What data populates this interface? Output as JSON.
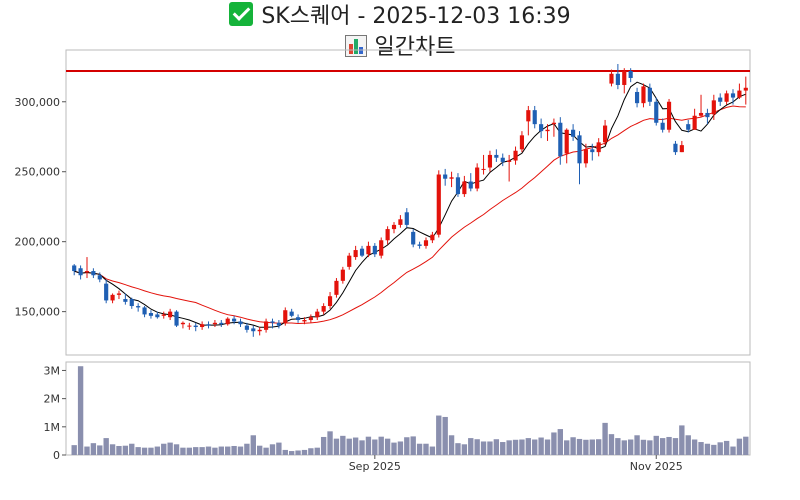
{
  "title": {
    "text": "SK스퀘어 - 2025-12-03 16:39",
    "icon": "check-icon"
  },
  "subtitle": {
    "text": "일간차트",
    "icon": "bar-chart-icon"
  },
  "colors": {
    "up": "#e3120b",
    "down": "#1f5fb3",
    "ma5": "#000000",
    "ma20": "#e3120b",
    "resistance": "#d40000",
    "volume": "#8a8fae"
  },
  "chart_data": [
    {
      "type": "candlestick",
      "title": "",
      "x_ticks": [
        {
          "index": 47,
          "label": "Sep 2025"
        },
        {
          "index": 91,
          "label": "Nov 2025"
        }
      ],
      "y_ticks": [
        150000,
        200000,
        250000,
        300000
      ],
      "y_tick_labels": [
        "150,000",
        "200,000",
        "250,000",
        "300,000"
      ],
      "ylim": [
        119000,
        337000
      ],
      "resistance_line": 322000,
      "closes": [
        179000,
        176000,
        179000,
        176000,
        173000,
        158000,
        162000,
        163000,
        157000,
        154000,
        153000,
        148000,
        147000,
        146000,
        148000,
        150000,
        140000,
        142000,
        140000,
        139000,
        141000,
        140000,
        142000,
        141000,
        145000,
        143000,
        141000,
        137000,
        136000,
        137000,
        143000,
        142000,
        140000,
        151000,
        147000,
        144000,
        144000,
        146000,
        150000,
        154000,
        161000,
        172000,
        180000,
        190000,
        194000,
        190000,
        197000,
        191000,
        201000,
        209000,
        212000,
        216000,
        212000,
        198000,
        197000,
        201000,
        205000,
        248000,
        245000,
        246000,
        234000,
        243000,
        238000,
        253000,
        252000,
        262000,
        260000,
        257000,
        258000,
        265000,
        276000,
        294000,
        284000,
        279000,
        280000,
        285000,
        261000,
        280000,
        275000,
        256000,
        266000,
        264000,
        271000,
        283000,
        320000,
        312000,
        322000,
        317000,
        299000,
        311000,
        300000,
        285000,
        280000,
        300000,
        264000,
        269000,
        280000,
        290000,
        292000,
        289000,
        301000,
        300000,
        306000,
        303000,
        308000,
        310000
      ],
      "opens": [
        183000,
        181000,
        178000,
        179000,
        176000,
        170000,
        158000,
        162000,
        159000,
        159000,
        154000,
        153000,
        149000,
        148000,
        147000,
        146000,
        150000,
        141000,
        140000,
        140000,
        139000,
        141000,
        141000,
        142000,
        141000,
        145000,
        143000,
        140000,
        138000,
        136000,
        137000,
        143000,
        142000,
        142000,
        150000,
        146000,
        143000,
        144000,
        146000,
        150000,
        154000,
        162000,
        172000,
        182000,
        189000,
        195000,
        191000,
        197000,
        190000,
        201000,
        209000,
        212000,
        221000,
        207000,
        198000,
        197000,
        201000,
        205000,
        248000,
        245000,
        246000,
        234000,
        243000,
        238000,
        252000,
        253000,
        262000,
        260000,
        257000,
        258000,
        266000,
        286000,
        294000,
        284000,
        279000,
        284000,
        285000,
        263000,
        280000,
        276000,
        256000,
        266000,
        264000,
        271000,
        313000,
        320000,
        312000,
        322000,
        307000,
        299000,
        310000,
        300000,
        285000,
        280000,
        270000,
        264000,
        284000,
        280000,
        290000,
        292000,
        291000,
        303000,
        300000,
        306000,
        303000,
        308000
      ],
      "highs": [
        184000,
        183000,
        189000,
        181000,
        178000,
        173000,
        163000,
        165000,
        163000,
        160000,
        156000,
        154000,
        151000,
        150000,
        150000,
        152000,
        151000,
        143000,
        142000,
        142000,
        143000,
        143000,
        144000,
        144000,
        146000,
        147000,
        145000,
        142000,
        140000,
        139000,
        145000,
        145000,
        144000,
        153000,
        152000,
        148000,
        146000,
        148000,
        152000,
        156000,
        164000,
        174000,
        182000,
        192000,
        197000,
        197000,
        200000,
        199000,
        203000,
        211000,
        214000,
        219000,
        224000,
        209000,
        200000,
        203000,
        207000,
        251000,
        252000,
        250000,
        249000,
        247000,
        249000,
        256000,
        262000,
        265000,
        266000,
        263000,
        262000,
        268000,
        279000,
        297000,
        297000,
        288000,
        284000,
        288000,
        289000,
        281000,
        284000,
        279000,
        270000,
        270000,
        274000,
        287000,
        323000,
        327000,
        324000,
        324000,
        310000,
        313000,
        313000,
        303000,
        288000,
        302000,
        272000,
        272000,
        287000,
        295000,
        305000,
        295000,
        305000,
        306000,
        308000,
        309000,
        313000,
        318000
      ],
      "lows": [
        176000,
        173000,
        174000,
        174000,
        171000,
        156000,
        156000,
        159000,
        155000,
        152000,
        150000,
        146000,
        145000,
        145000,
        145000,
        144000,
        139000,
        138000,
        137000,
        136000,
        137000,
        138000,
        139000,
        139000,
        140000,
        141000,
        139000,
        135000,
        132000,
        133000,
        135000,
        138000,
        138000,
        140000,
        146000,
        142000,
        141000,
        142000,
        144000,
        148000,
        152000,
        160000,
        170000,
        180000,
        187000,
        189000,
        189000,
        189000,
        188000,
        198000,
        206000,
        210000,
        210000,
        196000,
        195000,
        195000,
        199000,
        203000,
        240000,
        239000,
        232000,
        232000,
        236000,
        236000,
        248000,
        250000,
        257000,
        254000,
        243000,
        255000,
        264000,
        276000,
        281000,
        274000,
        272000,
        275000,
        255000,
        256000,
        272000,
        241000,
        253000,
        258000,
        261000,
        269000,
        311000,
        309000,
        306000,
        314000,
        296000,
        296000,
        297000,
        283000,
        278000,
        278000,
        262000,
        264000,
        278000,
        280000,
        289000,
        284000,
        287000,
        297000,
        298000,
        298000,
        302000,
        298000
      ],
      "volumes": [
        0.35,
        3.15,
        0.3,
        0.42,
        0.34,
        0.6,
        0.38,
        0.32,
        0.33,
        0.4,
        0.28,
        0.26,
        0.26,
        0.3,
        0.4,
        0.44,
        0.38,
        0.26,
        0.26,
        0.28,
        0.28,
        0.3,
        0.26,
        0.3,
        0.3,
        0.32,
        0.3,
        0.4,
        0.7,
        0.33,
        0.26,
        0.38,
        0.44,
        0.18,
        0.14,
        0.16,
        0.18,
        0.24,
        0.26,
        0.64,
        0.84,
        0.58,
        0.68,
        0.58,
        0.62,
        0.52,
        0.65,
        0.55,
        0.65,
        0.58,
        0.44,
        0.48,
        0.63,
        0.66,
        0.4,
        0.4,
        0.3,
        1.4,
        1.35,
        0.7,
        0.42,
        0.38,
        0.6,
        0.56,
        0.48,
        0.48,
        0.56,
        0.46,
        0.52,
        0.54,
        0.55,
        0.6,
        0.55,
        0.62,
        0.55,
        0.8,
        0.92,
        0.52,
        0.63,
        0.57,
        0.54,
        0.55,
        0.56,
        1.14,
        0.74,
        0.6,
        0.52,
        0.55,
        0.7,
        0.54,
        0.52,
        0.68,
        0.6,
        0.64,
        0.6,
        1.05,
        0.7,
        0.55,
        0.46,
        0.4,
        0.36,
        0.45,
        0.5,
        0.3,
        0.58,
        0.65
      ],
      "volume_ticks": [
        0,
        1,
        2,
        3
      ],
      "volume_tick_labels": [
        "0",
        "1M",
        "2M",
        "3M"
      ],
      "volume_ylim": [
        0,
        3.3
      ]
    }
  ]
}
